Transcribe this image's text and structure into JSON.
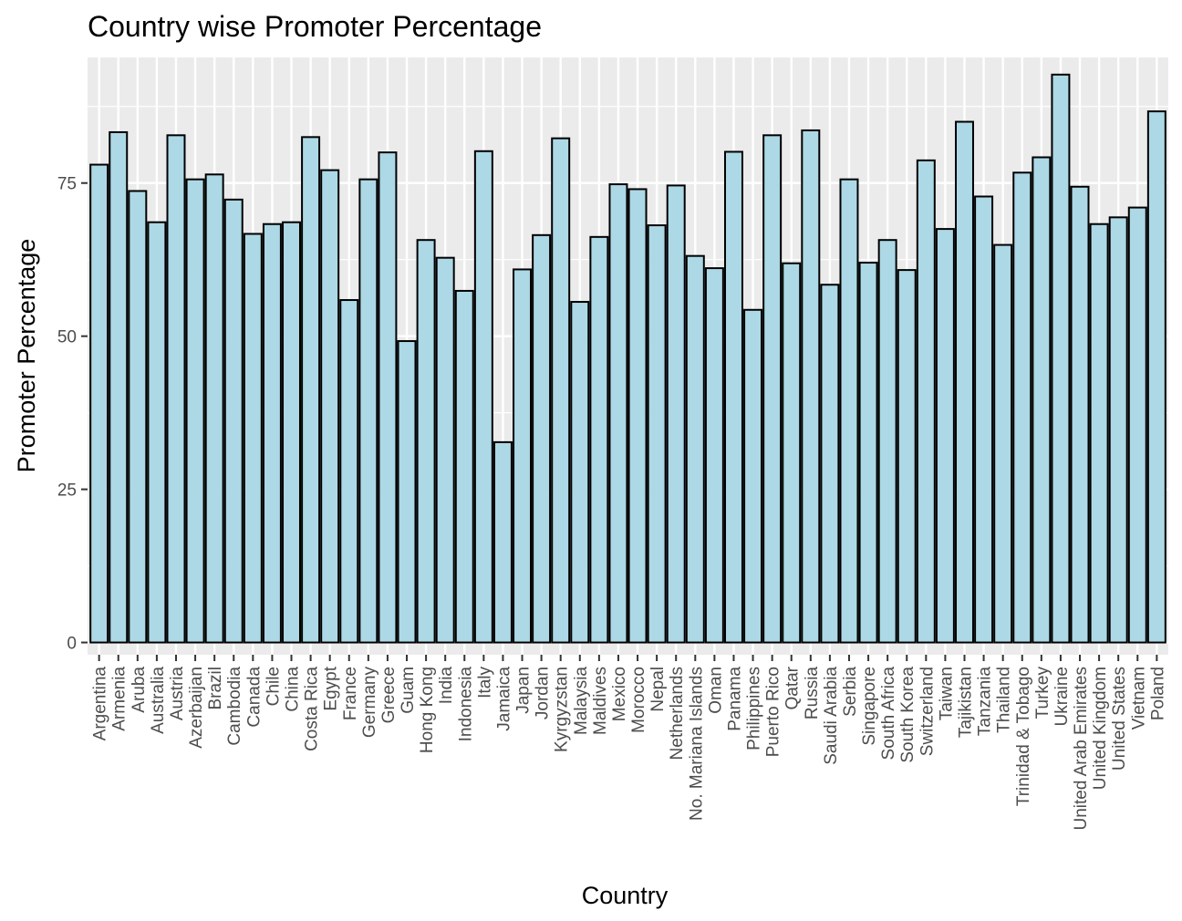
{
  "chart_data": {
    "type": "bar",
    "title": "Country wise Promoter Percentage",
    "xlabel": "Country",
    "ylabel": "Promoter Percentage",
    "ylim": [
      -2,
      95.5
    ],
    "yticks": [
      0,
      25,
      50,
      75
    ],
    "grid": true,
    "legend": "none",
    "categories": [
      "Argentina",
      "Armenia",
      "Aruba",
      "Australia",
      "Austria",
      "Azerbaijan",
      "Brazil",
      "Cambodia",
      "Canada",
      "Chile",
      "China",
      "Costa Rica",
      "Egypt",
      "France",
      "Germany",
      "Greece",
      "Guam",
      "Hong Kong",
      "India",
      "Indonesia",
      "Italy",
      "Jamaica",
      "Japan",
      "Jordan",
      "Kyrgyzstan",
      "Malaysia",
      "Maldives",
      "Mexico",
      "Morocco",
      "Nepal",
      "Netherlands",
      "No. Mariana Islands",
      "Oman",
      "Panama",
      "Philippines",
      "Puerto Rico",
      "Qatar",
      "Russia",
      "Saudi Arabia",
      "Serbia",
      "Singapore",
      "South Africa",
      "South Korea",
      "Switzerland",
      "Taiwan",
      "Tajikistan",
      "Tanzania",
      "Thailand",
      "Trinidad & Tobago",
      "Turkey",
      "Ukraine",
      "United Arab Emirates",
      "United Kingdom",
      "United States",
      "Vietnam",
      "Poland"
    ],
    "values": [
      78.0,
      83.3,
      73.7,
      68.6,
      82.8,
      75.6,
      76.4,
      72.3,
      66.7,
      68.3,
      68.6,
      82.5,
      77.1,
      55.9,
      75.6,
      80.0,
      49.2,
      65.7,
      62.8,
      57.4,
      80.2,
      32.7,
      60.9,
      66.5,
      82.3,
      55.6,
      66.2,
      74.8,
      74.0,
      68.1,
      74.6,
      63.1,
      61.1,
      80.1,
      54.3,
      82.8,
      61.9,
      83.6,
      58.4,
      75.6,
      62.0,
      65.7,
      60.8,
      78.7,
      67.5,
      85.0,
      72.8,
      64.9,
      76.7,
      79.2,
      92.7,
      74.4,
      68.3,
      69.4,
      71.0,
      86.7
    ],
    "colors": {
      "bar_fill": "#add8e6",
      "bar_stroke": "#000000",
      "panel": "#ebebeb",
      "grid": "#ffffff"
    }
  }
}
